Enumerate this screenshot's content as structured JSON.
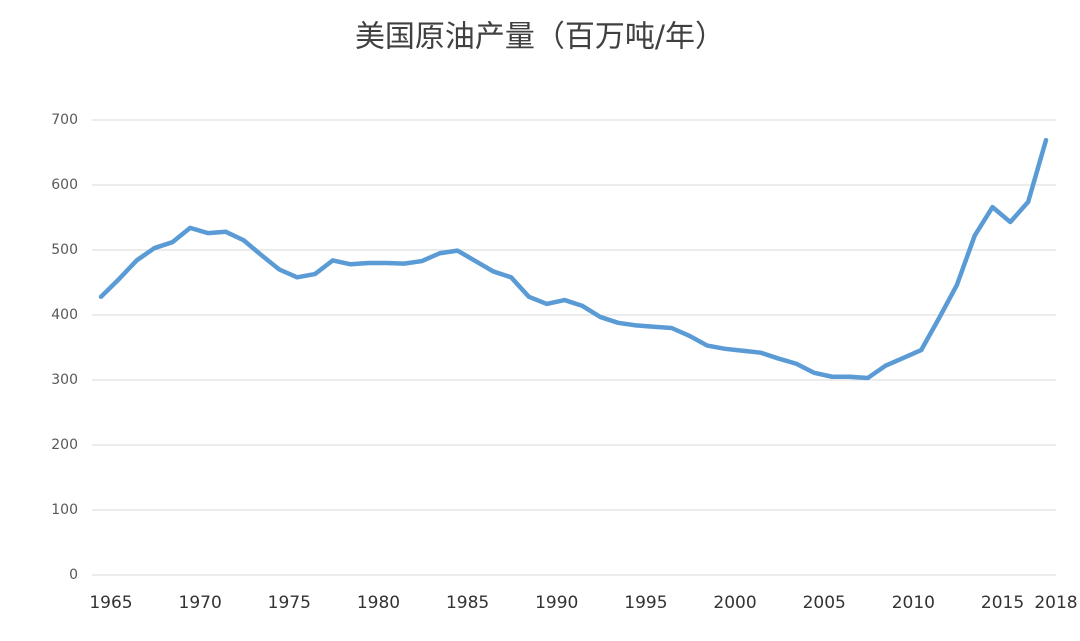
{
  "chart_data": {
    "type": "line",
    "title": "美国原油产量（百万吨/年）",
    "x": [
      1965,
      1966,
      1967,
      1968,
      1969,
      1970,
      1971,
      1972,
      1973,
      1974,
      1975,
      1976,
      1977,
      1978,
      1979,
      1980,
      1981,
      1982,
      1983,
      1984,
      1985,
      1986,
      1987,
      1988,
      1989,
      1990,
      1991,
      1992,
      1993,
      1994,
      1995,
      1996,
      1997,
      1998,
      1999,
      2000,
      2001,
      2002,
      2003,
      2004,
      2005,
      2006,
      2007,
      2008,
      2009,
      2010,
      2011,
      2012,
      2013,
      2014,
      2015,
      2016,
      2017,
      2018
    ],
    "values": [
      428,
      455,
      484,
      503,
      512,
      534,
      526,
      528,
      515,
      492,
      470,
      458,
      463,
      484,
      478,
      480,
      480,
      479,
      483,
      495,
      499,
      483,
      467,
      458,
      428,
      417,
      423,
      414,
      397,
      388,
      384,
      382,
      380,
      368,
      353,
      348,
      345,
      342,
      333,
      325,
      311,
      305,
      305,
      303,
      322,
      334,
      346,
      395,
      446,
      522,
      566,
      543,
      574,
      669
    ],
    "color": "#5b9bd5",
    "xlim": [
      1965,
      2018
    ],
    "xticks": [
      1965,
      1970,
      1975,
      1980,
      1985,
      1990,
      1995,
      2000,
      2005,
      2010,
      2015,
      2018
    ],
    "ylim": [
      0,
      700
    ],
    "yticks": [
      0,
      100,
      200,
      300,
      400,
      500,
      600,
      700
    ],
    "grid": true
  }
}
